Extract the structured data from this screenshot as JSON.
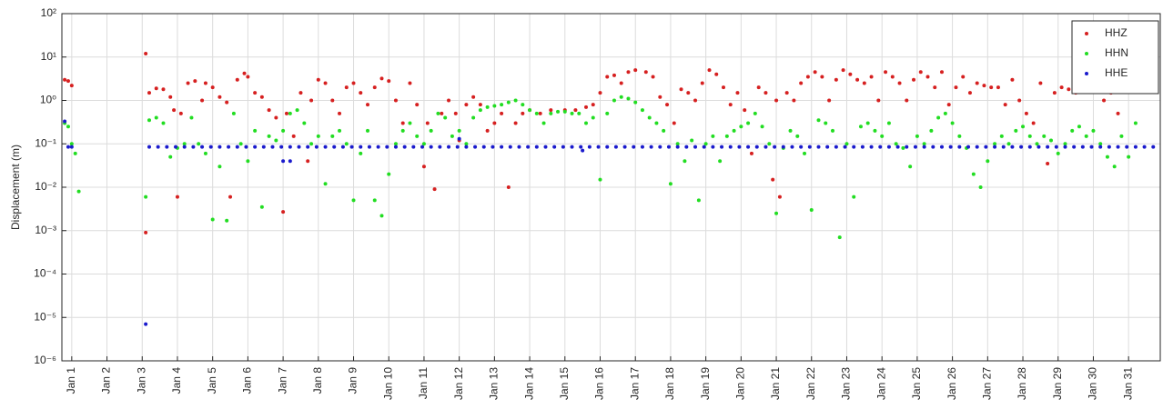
{
  "chart_data": {
    "type": "scatter",
    "y_label": "Displacement (m)",
    "log_y": true,
    "grid": true,
    "legend": "top-right",
    "xlim": [
      0.72,
      31.9
    ],
    "ylim": [
      1e-06,
      100
    ],
    "yticks": [
      {
        "value": 1e-06,
        "label": "10⁻⁶"
      },
      {
        "value": 1e-05,
        "label": "10⁻⁵"
      },
      {
        "value": 0.0001,
        "label": "10⁻⁴"
      },
      {
        "value": 0.001,
        "label": "10⁻³"
      },
      {
        "value": 0.01,
        "label": "10⁻²"
      },
      {
        "value": 0.1,
        "label": "10⁻¹"
      },
      {
        "value": 1,
        "label": "10⁰"
      },
      {
        "value": 10,
        "label": "10¹"
      },
      {
        "value": 100,
        "label": "10²"
      }
    ],
    "xticks": [
      {
        "value": 1,
        "label": "Jan 1"
      },
      {
        "value": 2,
        "label": "Jan 2"
      },
      {
        "value": 3,
        "label": "Jan 3"
      },
      {
        "value": 4,
        "label": "Jan 4"
      },
      {
        "value": 5,
        "label": "Jan 5"
      },
      {
        "value": 6,
        "label": "Jan 6"
      },
      {
        "value": 7,
        "label": "Jan 7"
      },
      {
        "value": 8,
        "label": "Jan 8"
      },
      {
        "value": 9,
        "label": "Jan 9"
      },
      {
        "value": 10,
        "label": "Jan 10"
      },
      {
        "value": 11,
        "label": "Jan 11"
      },
      {
        "value": 12,
        "label": "Jan 12"
      },
      {
        "value": 13,
        "label": "Jan 13"
      },
      {
        "value": 14,
        "label": "Jan 14"
      },
      {
        "value": 15,
        "label": "Jan 15"
      },
      {
        "value": 16,
        "label": "Jan 16"
      },
      {
        "value": 17,
        "label": "Jan 17"
      },
      {
        "value": 18,
        "label": "Jan 18"
      },
      {
        "value": 19,
        "label": "Jan 19"
      },
      {
        "value": 20,
        "label": "Jan 20"
      },
      {
        "value": 21,
        "label": "Jan 21"
      },
      {
        "value": 22,
        "label": "Jan 22"
      },
      {
        "value": 23,
        "label": "Jan 23"
      },
      {
        "value": 24,
        "label": "Jan 24"
      },
      {
        "value": 25,
        "label": "Jan 25"
      },
      {
        "value": 26,
        "label": "Jan 26"
      },
      {
        "value": 27,
        "label": "Jan 27"
      },
      {
        "value": 28,
        "label": "Jan 28"
      },
      {
        "value": 29,
        "label": "Jan 29"
      },
      {
        "value": 30,
        "label": "Jan 30"
      },
      {
        "value": 31,
        "label": "Jan 31"
      }
    ],
    "series": [
      {
        "name": "HHZ",
        "color": "#d62020",
        "x": [
          0.8,
          0.9,
          1.0,
          3.1,
          3.1,
          3.2,
          3.4,
          3.6,
          3.8,
          3.9,
          4.0,
          4.1,
          4.3,
          4.5,
          4.7,
          4.8,
          5.0,
          5.2,
          5.4,
          5.5,
          5.7,
          5.9,
          6.0,
          6.2,
          6.4,
          6.6,
          6.8,
          7.0,
          7.1,
          7.3,
          7.5,
          7.7,
          7.8,
          8.0,
          8.2,
          8.4,
          8.6,
          8.8,
          9.0,
          9.2,
          9.4,
          9.6,
          9.8,
          10.0,
          10.2,
          10.4,
          10.6,
          10.8,
          11.0,
          11.1,
          11.3,
          11.5,
          11.7,
          11.9,
          12.0,
          12.2,
          12.4,
          12.6,
          12.8,
          13.0,
          13.2,
          13.4,
          13.6,
          13.8,
          14.0,
          14.3,
          14.6,
          15.0,
          15.3,
          15.6,
          15.8,
          16.0,
          16.2,
          16.4,
          16.6,
          16.8,
          17.0,
          17.3,
          17.5,
          17.7,
          17.9,
          18.1,
          18.3,
          18.5,
          18.7,
          18.9,
          19.1,
          19.3,
          19.5,
          19.7,
          19.9,
          20.1,
          20.3,
          20.5,
          20.7,
          20.9,
          21.0,
          21.1,
          21.3,
          21.5,
          21.7,
          21.9,
          22.1,
          22.3,
          22.5,
          22.7,
          22.9,
          23.1,
          23.3,
          23.5,
          23.7,
          23.9,
          24.1,
          24.3,
          24.5,
          24.7,
          24.9,
          25.1,
          25.3,
          25.5,
          25.7,
          25.9,
          26.1,
          26.3,
          26.5,
          26.7,
          26.9,
          27.1,
          27.3,
          27.5,
          27.7,
          27.9,
          28.1,
          28.3,
          28.5,
          28.7,
          28.9,
          29.1,
          29.3,
          29.5,
          29.7,
          29.9,
          30.1,
          30.3,
          30.5,
          30.7,
          30.9,
          31.1,
          31.3
        ],
        "values": [
          3,
          2.8,
          2.2,
          12,
          0.0009,
          1.5,
          1.9,
          1.8,
          1.2,
          0.6,
          0.006,
          0.5,
          2.5,
          2.8,
          1.0,
          2.5,
          2.0,
          1.2,
          0.9,
          0.006,
          3.0,
          4.2,
          3.5,
          1.5,
          1.2,
          0.6,
          0.4,
          0.0027,
          0.5,
          0.15,
          1.5,
          0.04,
          1.0,
          3.0,
          2.5,
          1.0,
          0.5,
          2.0,
          2.5,
          1.5,
          0.8,
          2.0,
          3.2,
          2.8,
          1.0,
          0.3,
          2.5,
          0.8,
          0.03,
          0.3,
          0.009,
          0.5,
          1.0,
          0.5,
          0.12,
          0.8,
          1.2,
          0.8,
          0.2,
          0.3,
          0.5,
          0.01,
          0.3,
          0.5,
          0.6,
          0.5,
          0.6,
          0.6,
          0.6,
          0.7,
          0.8,
          1.5,
          3.5,
          3.8,
          2.5,
          4.5,
          5.0,
          4.5,
          3.5,
          1.2,
          0.8,
          0.3,
          1.8,
          1.5,
          1.0,
          2.5,
          5.0,
          4.0,
          2.0,
          0.8,
          1.5,
          0.6,
          0.06,
          2.0,
          1.5,
          0.015,
          1.0,
          0.006,
          1.5,
          1.0,
          2.5,
          3.5,
          4.5,
          3.5,
          1.0,
          3.0,
          5.0,
          4.0,
          3.0,
          2.5,
          3.5,
          1.0,
          4.5,
          3.5,
          2.5,
          1.0,
          3.0,
          4.5,
          3.5,
          2.0,
          4.5,
          0.8,
          2.0,
          3.5,
          1.5,
          2.5,
          2.2,
          2.0,
          2.0,
          0.8,
          3.0,
          1.0,
          0.5,
          0.3,
          2.5,
          0.035,
          1.5,
          2.0,
          1.8,
          1.5,
          2.5,
          1.8,
          2.5,
          1.0,
          1.5,
          0.5,
          3.0,
          12,
          8
        ]
      },
      {
        "name": "HHN",
        "color": "#22dd22",
        "x": [
          0.8,
          0.9,
          1.0,
          1.1,
          1.2,
          3.1,
          3.2,
          3.4,
          3.6,
          3.8,
          4.0,
          4.2,
          4.4,
          4.6,
          4.8,
          5.0,
          5.2,
          5.4,
          5.6,
          5.8,
          6.0,
          6.2,
          6.4,
          6.6,
          6.8,
          7.0,
          7.2,
          7.4,
          7.6,
          7.8,
          8.0,
          8.2,
          8.4,
          8.6,
          8.8,
          9.0,
          9.2,
          9.4,
          9.6,
          9.8,
          10.0,
          10.2,
          10.4,
          10.6,
          10.8,
          11.0,
          11.2,
          11.4,
          11.6,
          11.8,
          12.0,
          12.2,
          12.4,
          12.6,
          12.8,
          13.0,
          13.2,
          13.4,
          13.6,
          13.8,
          14.0,
          14.2,
          14.4,
          14.6,
          14.8,
          15.0,
          15.2,
          15.4,
          15.6,
          15.8,
          16.0,
          16.2,
          16.4,
          16.6,
          16.8,
          17.0,
          17.2,
          17.4,
          17.6,
          17.8,
          18.0,
          18.2,
          18.4,
          18.6,
          18.8,
          19.0,
          19.2,
          19.4,
          19.6,
          19.8,
          20.0,
          20.2,
          20.4,
          20.6,
          20.8,
          21.0,
          21.2,
          21.4,
          21.6,
          21.8,
          22.0,
          22.2,
          22.4,
          22.6,
          22.8,
          23.0,
          23.2,
          23.4,
          23.6,
          23.8,
          24.0,
          24.2,
          24.4,
          24.6,
          24.8,
          25.0,
          25.2,
          25.4,
          25.6,
          25.8,
          26.0,
          26.2,
          26.4,
          26.6,
          26.8,
          27.0,
          27.2,
          27.4,
          27.6,
          27.8,
          28.0,
          28.2,
          28.4,
          28.6,
          28.8,
          29.0,
          29.2,
          29.4,
          29.6,
          29.8,
          30.0,
          30.2,
          30.4,
          30.6,
          30.8,
          31.0,
          31.2
        ],
        "values": [
          0.3,
          0.25,
          0.1,
          0.06,
          0.008,
          0.006,
          0.35,
          0.4,
          0.3,
          0.05,
          0.08,
          0.1,
          0.4,
          0.1,
          0.06,
          0.0018,
          0.03,
          0.0017,
          0.5,
          0.1,
          0.04,
          0.2,
          0.0035,
          0.15,
          0.12,
          0.2,
          0.5,
          0.6,
          0.3,
          0.1,
          0.15,
          0.012,
          0.15,
          0.2,
          0.1,
          0.005,
          0.06,
          0.2,
          0.005,
          0.0022,
          0.02,
          0.1,
          0.2,
          0.3,
          0.15,
          0.1,
          0.2,
          0.5,
          0.4,
          0.15,
          0.2,
          0.1,
          0.4,
          0.6,
          0.7,
          0.75,
          0.8,
          0.9,
          1.0,
          0.8,
          0.6,
          0.5,
          0.3,
          0.5,
          0.55,
          0.55,
          0.5,
          0.5,
          0.3,
          0.4,
          0.015,
          0.5,
          1.0,
          1.2,
          1.1,
          0.9,
          0.6,
          0.4,
          0.3,
          0.2,
          0.012,
          0.1,
          0.04,
          0.12,
          0.005,
          0.1,
          0.15,
          0.04,
          0.15,
          0.2,
          0.25,
          0.3,
          0.5,
          0.25,
          0.1,
          0.0025,
          0.08,
          0.2,
          0.15,
          0.06,
          0.003,
          0.35,
          0.3,
          0.2,
          0.0007,
          0.1,
          0.006,
          0.25,
          0.3,
          0.2,
          0.15,
          0.3,
          0.1,
          0.08,
          0.03,
          0.15,
          0.1,
          0.2,
          0.4,
          0.5,
          0.3,
          0.15,
          0.08,
          0.02,
          0.01,
          0.04,
          0.1,
          0.15,
          0.1,
          0.2,
          0.25,
          0.15,
          0.1,
          0.15,
          0.12,
          0.06,
          0.1,
          0.2,
          0.25,
          0.15,
          0.2,
          0.1,
          0.05,
          0.03,
          0.15,
          0.05,
          0.3
        ]
      },
      {
        "name": "HHE",
        "color": "#1a1acc",
        "x": [
          0.8,
          0.9,
          1.0,
          3.1,
          7.0,
          7.2,
          12.0,
          15.5,
          3.2,
          3.45,
          3.7,
          3.95,
          4.2,
          4.45,
          4.7,
          4.95,
          5.2,
          5.45,
          5.7,
          5.95,
          6.2,
          6.45,
          6.7,
          6.95,
          7.2,
          7.45,
          7.7,
          7.95,
          8.2,
          8.45,
          8.7,
          8.95,
          9.2,
          9.45,
          9.7,
          9.95,
          10.2,
          10.45,
          10.7,
          10.95,
          11.2,
          11.45,
          11.7,
          11.95,
          12.2,
          12.45,
          12.7,
          12.95,
          13.2,
          13.45,
          13.7,
          13.95,
          14.2,
          14.45,
          14.7,
          14.95,
          15.2,
          15.45,
          15.7,
          15.95,
          16.2,
          16.45,
          16.7,
          16.95,
          17.2,
          17.45,
          17.7,
          17.95,
          18.2,
          18.45,
          18.7,
          18.95,
          19.2,
          19.45,
          19.7,
          19.95,
          20.2,
          20.45,
          20.7,
          20.95,
          21.2,
          21.45,
          21.7,
          21.95,
          22.2,
          22.45,
          22.7,
          22.95,
          23.2,
          23.45,
          23.7,
          23.95,
          24.2,
          24.45,
          24.7,
          24.95,
          25.2,
          25.45,
          25.7,
          25.95,
          26.2,
          26.45,
          26.7,
          26.95,
          27.2,
          27.45,
          27.7,
          27.95,
          28.2,
          28.45,
          28.7,
          28.95,
          29.2,
          29.45,
          29.7,
          29.95,
          30.2,
          30.45,
          30.7,
          30.95,
          31.2,
          31.45,
          31.7
        ],
        "values": [
          0.33,
          0.085,
          0.085,
          7e-06,
          0.04,
          0.04,
          0.13,
          0.07,
          0.085,
          0.085,
          0.085,
          0.085,
          0.085,
          0.085,
          0.085,
          0.085,
          0.085,
          0.085,
          0.085,
          0.085,
          0.085,
          0.085,
          0.085,
          0.085,
          0.085,
          0.085,
          0.085,
          0.085,
          0.085,
          0.085,
          0.085,
          0.085,
          0.085,
          0.085,
          0.085,
          0.085,
          0.085,
          0.085,
          0.085,
          0.085,
          0.085,
          0.085,
          0.085,
          0.085,
          0.085,
          0.085,
          0.085,
          0.085,
          0.085,
          0.085,
          0.085,
          0.085,
          0.085,
          0.085,
          0.085,
          0.085,
          0.085,
          0.085,
          0.085,
          0.085,
          0.085,
          0.085,
          0.085,
          0.085,
          0.085,
          0.085,
          0.085,
          0.085,
          0.085,
          0.085,
          0.085,
          0.085,
          0.085,
          0.085,
          0.085,
          0.085,
          0.085,
          0.085,
          0.085,
          0.085,
          0.085,
          0.085,
          0.085,
          0.085,
          0.085,
          0.085,
          0.085,
          0.085,
          0.085,
          0.085,
          0.085,
          0.085,
          0.085,
          0.085,
          0.085,
          0.085,
          0.085,
          0.085,
          0.085,
          0.085,
          0.085,
          0.085,
          0.085,
          0.085,
          0.085,
          0.085,
          0.085,
          0.085,
          0.085,
          0.085,
          0.085,
          0.085,
          0.085,
          0.085,
          0.085,
          0.085,
          0.085,
          0.085,
          0.085,
          0.085,
          0.085,
          0.085,
          0.085
        ]
      }
    ]
  }
}
